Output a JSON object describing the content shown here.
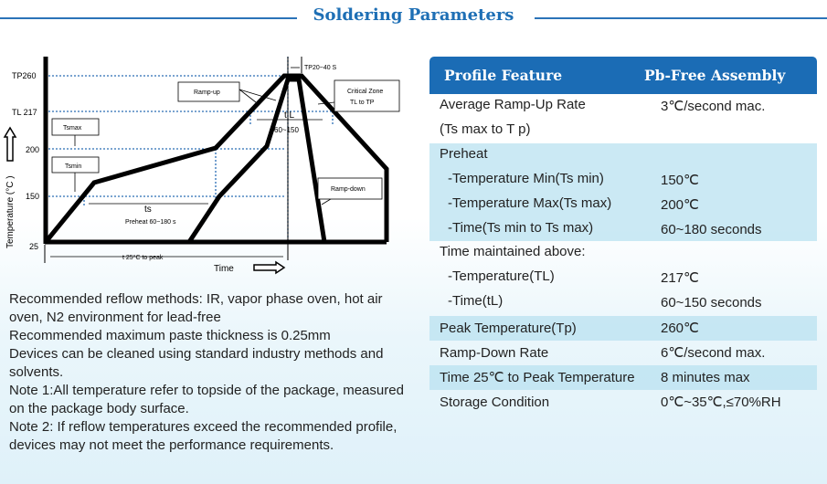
{
  "title": "Soldering Parameters",
  "diagram": {
    "y_axis_label": "Temperature (°C )",
    "x_axis_label": "Time",
    "ticks": [
      "TP260",
      "TL 217",
      "200",
      "150",
      "25"
    ],
    "tp_label": "TP20~40 S",
    "ramp_up": "Ramp-up",
    "critical_zone": [
      "Critical Zone",
      "TL to TP"
    ],
    "tsmax": "Tsmax",
    "tsmin": "Tsmin",
    "tl": "t L",
    "tl_range": "60~150",
    "ts": "ts",
    "preheat": "Preheat 60~180 s",
    "ramp_down": "Ramp-down",
    "t25": "t 25°C to peak"
  },
  "notes": [
    "Recommended reflow methods: IR, vapor phase oven, hot air oven, N2 environment for lead-free",
    "Recommended maximum paste thickness is 0.25mm",
    "Devices can be cleaned using standard industry methods and solvents.",
    "Note 1:All temperature refer to topside of the package, measured on the package body surface.",
    "Note 2: If reflow temperatures exceed the recommended profile, devices may not meet the performance requirements."
  ],
  "table": {
    "headers": [
      "Profile Feature",
      "Pb-Free Assembly"
    ],
    "rows": [
      {
        "label": "Average Ramp-Up Rate",
        "label2": "(Ts max to T p)",
        "value": "3℃/second mac."
      },
      {
        "label": "Preheat",
        "sub": [
          {
            "label": "-Temperature Min(Ts min)",
            "value": "150℃"
          },
          {
            "label": "-Temperature Max(Ts max)",
            "value": "200℃"
          },
          {
            "label": "-Time(Ts min to Ts max)",
            "value": "60~180 seconds"
          }
        ]
      },
      {
        "label": "Time maintained above:",
        "sub": [
          {
            "label": "-Temperature(TL)",
            "value": "217℃"
          },
          {
            "label": "-Time(tL)",
            "value": "60~150 seconds"
          }
        ]
      },
      {
        "label": "Peak Temperature(Tp)",
        "value": "260℃"
      },
      {
        "label": "Ramp-Down Rate",
        "value": "6℃/second max."
      },
      {
        "label": "Time 25℃ to Peak Temperature",
        "value": "8 minutes max"
      },
      {
        "label": "Storage Condition",
        "value": "0℃~35℃,≤70%RH"
      }
    ]
  },
  "colors": {
    "accent": "#1b6cb5",
    "row_highlight": "#c3e6f3"
  }
}
